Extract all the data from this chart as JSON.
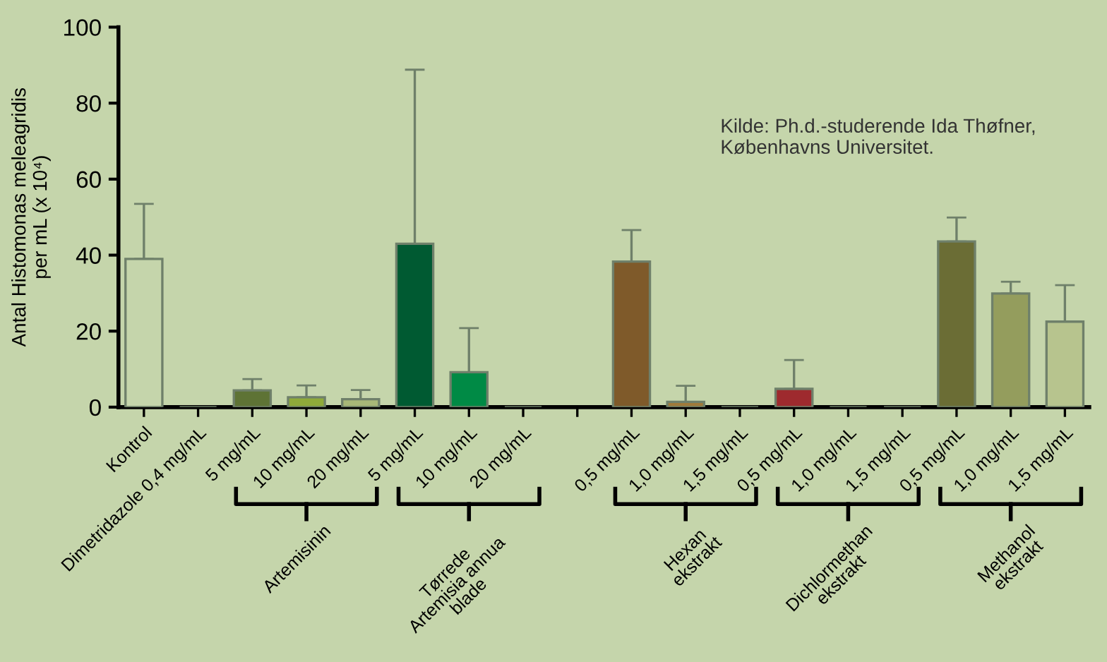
{
  "chart_data": {
    "type": "bar",
    "ylabel": "Antal Histomonas meleagridis\nper mL (x 10⁴)",
    "categories": [
      "Kontrol",
      "Dimetridazole 0,4 mg/mL",
      "5 mg/mL",
      "10 mg/mL",
      "20 mg/mL",
      "5 mg/mL",
      "10 mg/mL",
      "20 mg/mL",
      null,
      "0,5 mg/mL",
      "1,0 mg/mL",
      "1,5 mg/mL",
      "0,5 mg/mL",
      "1,0 mg/mL",
      "1,5 mg/mL",
      "0,5 mg/mL",
      "1,0 mg/mL",
      "1,5 mg/mL"
    ],
    "values": [
      39,
      0,
      4.4,
      2.6,
      2.1,
      43,
      9.2,
      0,
      null,
      38.3,
      1.4,
      0,
      4.8,
      0,
      0,
      43.6,
      29.9,
      22.5
    ],
    "errors": [
      [
        39,
        53.5
      ],
      null,
      [
        4.4,
        7.4
      ],
      [
        2.6,
        5.7
      ],
      [
        2.1,
        4.5
      ],
      [
        43,
        88.8
      ],
      [
        9.2,
        20.8
      ],
      null,
      null,
      [
        38.3,
        46.6
      ],
      [
        1.4,
        5.6
      ],
      null,
      [
        4.8,
        12.4
      ],
      null,
      null,
      [
        43.6,
        49.9
      ],
      [
        29.9,
        33.0
      ],
      [
        22.5,
        32.1
      ]
    ],
    "colors": [
      "#c5d5ab",
      "#6f806a",
      "#5e7335",
      "#8faa3a",
      "#a8b878",
      "#005a32",
      "#008a45",
      "#6f806a",
      "#6f806a",
      "#7f5a2a",
      "#a07a3a",
      "#6f806a",
      "#9e2a2e",
      "#6f806a",
      "#6f806a",
      "#6b6d35",
      "#949d5d",
      "#b7c48e"
    ],
    "ylim": [
      0,
      100
    ],
    "yticks": [
      0,
      20,
      40,
      60,
      80,
      100
    ],
    "grid": false,
    "legend": false,
    "annotations": [
      "Kilde: Ph.d.-studerende Ida Thøfner,\nKøbenhavns Universitet.",
      "Artemisinin",
      "Tørrede\nArtemisia annua\nblade",
      "Hexan\nekstrakt",
      "Dichlormethan\nekstrakt",
      "Methanol\nekstrakt"
    ]
  }
}
